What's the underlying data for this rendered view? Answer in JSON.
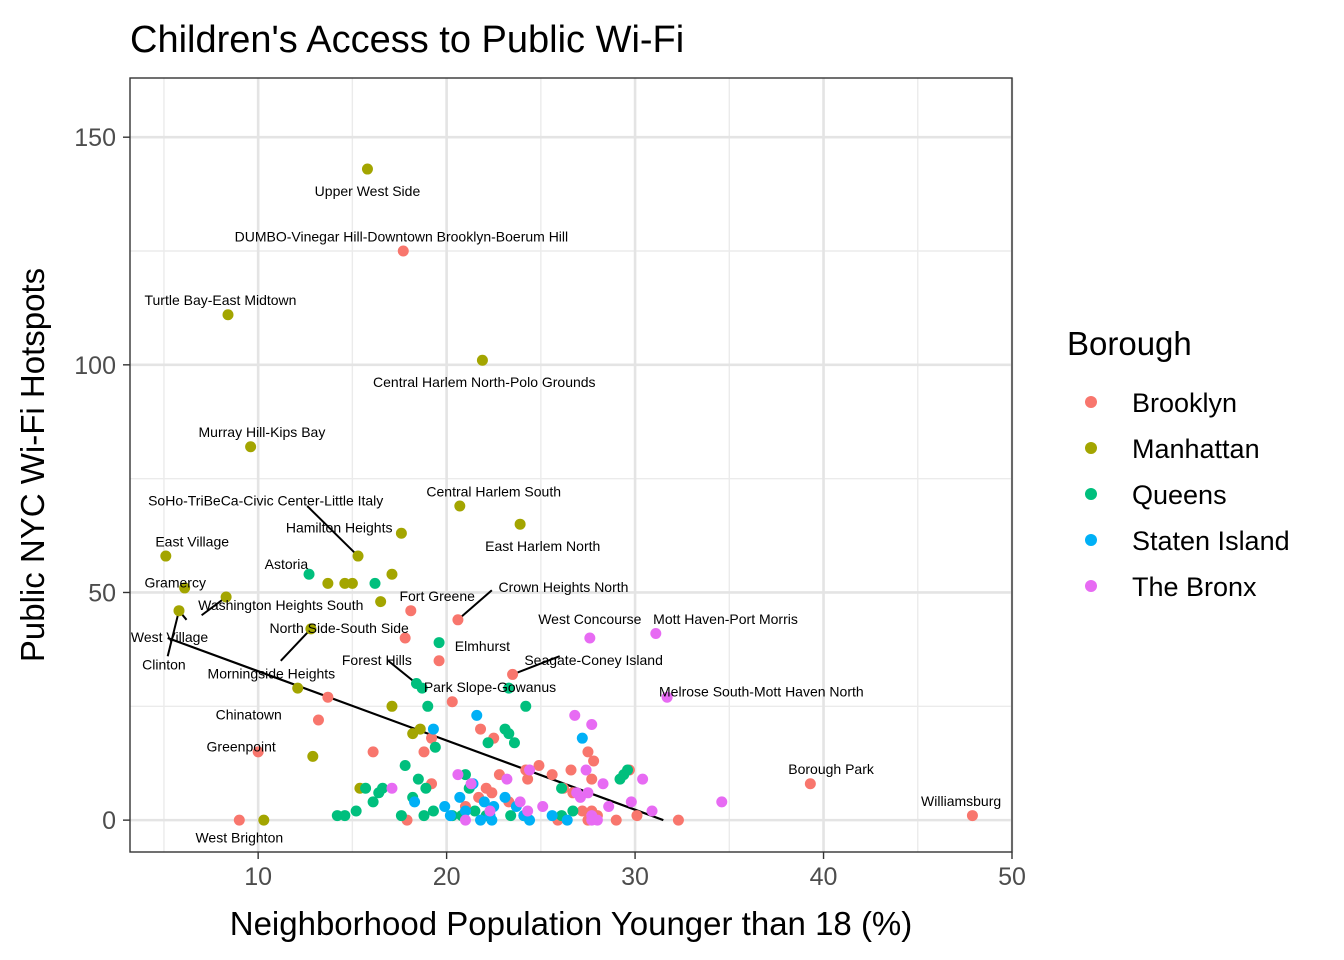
{
  "chart_data": {
    "type": "scatter",
    "title": "Children's Access to Public Wi-Fi",
    "xlabel": "Neighborhood Population Younger than 18 (%)",
    "ylabel": "Public NYC Wi-Fi Hotspots",
    "xlim": [
      3.2,
      50
    ],
    "ylim": [
      -7,
      163
    ],
    "xticks": [
      10,
      20,
      30,
      40,
      50
    ],
    "yticks": [
      0,
      50,
      100,
      150
    ],
    "grid": true,
    "legend": {
      "title": "Borough",
      "position": "right"
    },
    "series": [
      {
        "name": "Brooklyn",
        "color": "#F8766D",
        "points": [
          [
            17.7,
            125
          ],
          [
            18.1,
            46
          ],
          [
            20.6,
            44
          ],
          [
            17.8,
            40
          ],
          [
            19.6,
            35
          ],
          [
            23.5,
            32
          ],
          [
            20.3,
            26
          ],
          [
            13.7,
            27
          ],
          [
            13.2,
            22
          ],
          [
            21.8,
            20
          ],
          [
            22.5,
            18
          ],
          [
            16.1,
            15
          ],
          [
            19.2,
            18
          ],
          [
            18.8,
            15
          ],
          [
            24.2,
            11
          ],
          [
            24.3,
            9
          ],
          [
            24.9,
            12
          ],
          [
            25.6,
            10
          ],
          [
            27.5,
            15
          ],
          [
            27.8,
            13
          ],
          [
            26.6,
            11
          ],
          [
            27.7,
            9
          ],
          [
            26.7,
            6
          ],
          [
            26.2,
            7
          ],
          [
            22.8,
            10
          ],
          [
            22.1,
            7
          ],
          [
            21.7,
            5
          ],
          [
            22.4,
            6
          ],
          [
            21.0,
            3
          ],
          [
            23.3,
            4
          ],
          [
            19.2,
            8
          ],
          [
            27.2,
            2
          ],
          [
            27.7,
            2
          ],
          [
            28.0,
            1
          ],
          [
            29.0,
            0
          ],
          [
            25.9,
            0
          ],
          [
            27.5,
            0
          ],
          [
            30.1,
            1
          ],
          [
            17.9,
            0
          ],
          [
            39.3,
            8
          ],
          [
            47.9,
            1
          ],
          [
            32.3,
            0
          ],
          [
            10.0,
            15
          ],
          [
            9.0,
            0
          ],
          [
            29.7,
            11
          ]
        ]
      },
      {
        "name": "Manhattan",
        "color": "#A3A500",
        "points": [
          [
            15.8,
            143
          ],
          [
            8.4,
            111
          ],
          [
            21.9,
            101
          ],
          [
            9.6,
            82
          ],
          [
            20.7,
            69
          ],
          [
            23.9,
            65
          ],
          [
            17.6,
            63
          ],
          [
            15.3,
            58
          ],
          [
            5.1,
            58
          ],
          [
            6.1,
            51
          ],
          [
            8.3,
            49
          ],
          [
            12.8,
            42
          ],
          [
            5.8,
            46
          ],
          [
            13.7,
            52
          ],
          [
            14.6,
            52
          ],
          [
            15.0,
            52
          ],
          [
            17.1,
            54
          ],
          [
            16.5,
            48
          ],
          [
            12.1,
            29
          ],
          [
            17.1,
            25
          ],
          [
            18.2,
            19
          ],
          [
            18.6,
            20
          ],
          [
            12.9,
            14
          ],
          [
            15.4,
            7
          ],
          [
            10.3,
            0
          ]
        ]
      },
      {
        "name": "Queens",
        "color": "#00BF7D",
        "points": [
          [
            12.7,
            54
          ],
          [
            16.2,
            52
          ],
          [
            19.6,
            39
          ],
          [
            18.4,
            30
          ],
          [
            18.7,
            29
          ],
          [
            23.3,
            29
          ],
          [
            24.2,
            25
          ],
          [
            19.0,
            25
          ],
          [
            23.1,
            20
          ],
          [
            23.3,
            19
          ],
          [
            23.6,
            17
          ],
          [
            22.2,
            17
          ],
          [
            19.4,
            16
          ],
          [
            17.8,
            12
          ],
          [
            18.5,
            9
          ],
          [
            18.9,
            7
          ],
          [
            16.6,
            7
          ],
          [
            16.4,
            6
          ],
          [
            16.1,
            4
          ],
          [
            18.2,
            5
          ],
          [
            21.0,
            10
          ],
          [
            21.2,
            7
          ],
          [
            26.1,
            7
          ],
          [
            29.4,
            10
          ],
          [
            29.6,
            11
          ],
          [
            29.2,
            9
          ],
          [
            14.2,
            1
          ],
          [
            14.6,
            1
          ],
          [
            15.2,
            2
          ],
          [
            17.6,
            1
          ],
          [
            18.8,
            1
          ],
          [
            19.3,
            2
          ],
          [
            20.3,
            1
          ],
          [
            20.8,
            1
          ],
          [
            22.1,
            1
          ],
          [
            23.4,
            1
          ],
          [
            24.1,
            1
          ],
          [
            26.1,
            1
          ],
          [
            26.7,
            2
          ],
          [
            15.7,
            7
          ],
          [
            21.5,
            2
          ]
        ]
      },
      {
        "name": "Staten Island",
        "color": "#00B0F6",
        "points": [
          [
            21.6,
            23
          ],
          [
            19.3,
            20
          ],
          [
            27.2,
            18
          ],
          [
            18.3,
            4
          ],
          [
            20.7,
            5
          ],
          [
            21.4,
            8
          ],
          [
            22.0,
            4
          ],
          [
            22.5,
            3
          ],
          [
            23.1,
            5
          ],
          [
            19.9,
            3
          ],
          [
            21.0,
            2
          ],
          [
            22.3,
            1
          ],
          [
            24.4,
            0
          ],
          [
            25.6,
            1
          ],
          [
            21.8,
            0
          ],
          [
            22.4,
            0
          ],
          [
            24.1,
            1
          ],
          [
            23.7,
            3
          ],
          [
            26.4,
            0
          ],
          [
            20.2,
            1
          ]
        ]
      },
      {
        "name": "The Bronx",
        "color": "#E76BF3",
        "points": [
          [
            27.6,
            40
          ],
          [
            31.1,
            41
          ],
          [
            31.7,
            27
          ],
          [
            27.7,
            21
          ],
          [
            26.8,
            23
          ],
          [
            27.4,
            11
          ],
          [
            28.3,
            8
          ],
          [
            27.1,
            5
          ],
          [
            28.6,
            3
          ],
          [
            29.8,
            4
          ],
          [
            30.9,
            2
          ],
          [
            30.4,
            9
          ],
          [
            34.6,
            4
          ],
          [
            23.2,
            9
          ],
          [
            25.1,
            3
          ],
          [
            23.9,
            4
          ],
          [
            22.3,
            2
          ],
          [
            24.4,
            11
          ],
          [
            20.6,
            10
          ],
          [
            21.3,
            8
          ],
          [
            21.0,
            0
          ],
          [
            24.3,
            2
          ],
          [
            27.7,
            1
          ],
          [
            27.5,
            6
          ],
          [
            26.9,
            6
          ],
          [
            28.0,
            0
          ],
          [
            27.7,
            0
          ],
          [
            17.1,
            7
          ]
        ]
      }
    ],
    "trend_line": {
      "from": [
        5.2,
        40.0
      ],
      "to": [
        31.5,
        0.0
      ]
    },
    "annotations": [
      {
        "text": "Upper West Side",
        "at": [
          15.8,
          138
        ]
      },
      {
        "text": "DUMBO-Vinegar Hill-Downtown Brooklyn-Boerum Hill",
        "at": [
          17.6,
          128
        ]
      },
      {
        "text": "Turtle Bay-East Midtown",
        "at": [
          8.0,
          114
        ]
      },
      {
        "text": "Central Harlem North-Polo Grounds",
        "at": [
          22.0,
          96
        ]
      },
      {
        "text": "Murray Hill-Kips Bay",
        "at": [
          10.2,
          85
        ]
      },
      {
        "text": "Central Harlem South",
        "at": [
          22.5,
          72
        ]
      },
      {
        "text": "SoHo-TriBeCa-Civic Center-Little Italy",
        "at": [
          10.4,
          70
        ]
      },
      {
        "text": "Hamilton Heights",
        "at": [
          14.3,
          64
        ]
      },
      {
        "text": "East Village",
        "at": [
          6.5,
          61
        ]
      },
      {
        "text": "East Harlem North",
        "at": [
          25.1,
          60
        ]
      },
      {
        "text": "Astoria",
        "at": [
          11.5,
          56
        ]
      },
      {
        "text": "Crown Heights North",
        "at": [
          26.2,
          51
        ]
      },
      {
        "text": "Fort Greene",
        "at": [
          19.5,
          49
        ]
      },
      {
        "text": "Gramercy",
        "at": [
          5.6,
          52
        ]
      },
      {
        "text": "Washington Heights South",
        "at": [
          11.2,
          47
        ]
      },
      {
        "text": "West Concourse",
        "at": [
          27.6,
          44
        ]
      },
      {
        "text": "Mott Haven-Port Morris",
        "at": [
          34.8,
          44
        ]
      },
      {
        "text": "North Side-South Side",
        "at": [
          14.3,
          42
        ]
      },
      {
        "text": "West Village",
        "at": [
          5.3,
          40
        ]
      },
      {
        "text": "Elmhurst",
        "at": [
          21.9,
          38
        ]
      },
      {
        "text": "Forest Hills",
        "at": [
          16.3,
          35
        ]
      },
      {
        "text": "Seagate-Coney Island",
        "at": [
          27.8,
          35
        ]
      },
      {
        "text": "Clinton",
        "at": [
          5.0,
          34
        ]
      },
      {
        "text": "Morningside Heights",
        "at": [
          10.7,
          32
        ]
      },
      {
        "text": "Park Slope-Gowanus",
        "at": [
          22.3,
          29
        ]
      },
      {
        "text": "Melrose South-Mott Haven North",
        "at": [
          36.7,
          28
        ]
      },
      {
        "text": "Chinatown",
        "at": [
          9.5,
          23
        ]
      },
      {
        "text": "Greenpoint",
        "at": [
          9.1,
          16
        ]
      },
      {
        "text": "Borough Park",
        "at": [
          40.4,
          11
        ]
      },
      {
        "text": "Williamsburg",
        "at": [
          47.3,
          4
        ]
      },
      {
        "text": "West Brighton",
        "at": [
          9.0,
          -4
        ]
      }
    ],
    "leader_lines": [
      {
        "from": [
          15.3,
          58
        ],
        "to": [
          12.6,
          69
        ]
      },
      {
        "from": [
          7.0,
          45
        ],
        "to": [
          8.3,
          49
        ]
      },
      {
        "from": [
          6.2,
          44
        ],
        "to": [
          5.8,
          46
        ]
      },
      {
        "from": [
          5.2,
          36
        ],
        "to": [
          5.8,
          46
        ]
      },
      {
        "from": [
          11.2,
          35
        ],
        "to": [
          12.8,
          42
        ]
      },
      {
        "from": [
          20.6,
          44
        ],
        "to": [
          22.4,
          50.5
        ]
      },
      {
        "from": [
          16.9,
          35
        ],
        "to": [
          18.4,
          30
        ]
      },
      {
        "from": [
          23.5,
          32
        ],
        "to": [
          26.0,
          36
        ]
      }
    ]
  }
}
